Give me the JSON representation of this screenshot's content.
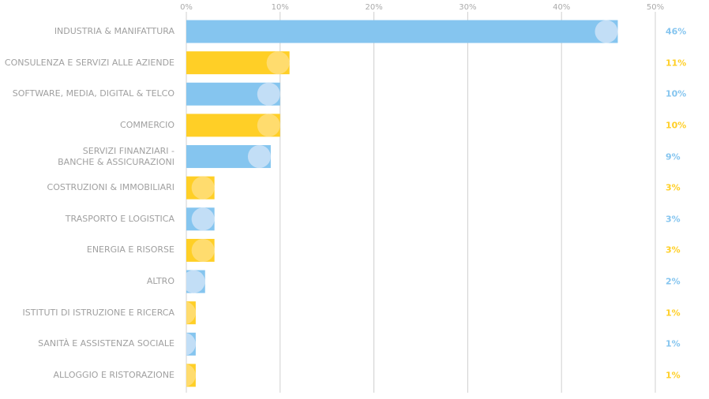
{
  "chart_data": {
    "type": "bar",
    "orientation": "horizontal",
    "categories": [
      "INDUSTRIA & MANIFATTURA",
      "CONSULENZA E SERVIZI ALLE AZIENDE",
      "SOFTWARE, MEDIA, DIGITAL & TELCO",
      "COMMERCIO",
      "SERVIZI FINANZIARI -\nBANCHE & ASSICURAZIONI",
      "COSTRUZIONI & IMMOBILIARI",
      "TRASPORTO E LOGISTICA",
      "ENERGIA E RISORSE",
      "ALTRO",
      "ISTITUTI DI ISTRUZIONE E RICERCA",
      "SANITÀ E ASSISTENZA SOCIALE",
      "ALLOGGIO E RISTORAZIONE"
    ],
    "values": [
      46,
      11,
      10,
      10,
      9,
      3,
      3,
      3,
      2,
      1,
      1,
      1
    ],
    "value_labels": [
      "46%",
      "11%",
      "10%",
      "10%",
      "9%",
      "3%",
      "3%",
      "3%",
      "2%",
      "1%",
      "1%",
      "1%"
    ],
    "colors": [
      "#85c5ef",
      "#ffcf26",
      "#85c5ef",
      "#ffcf26",
      "#85c5ef",
      "#ffcf26",
      "#85c5ef",
      "#ffcf26",
      "#85c5ef",
      "#ffcf26",
      "#85c5ef",
      "#ffcf26"
    ],
    "end_colors": [
      "#c2def6",
      "#ffdc6e",
      "#c2def6",
      "#ffdc6e",
      "#c2def6",
      "#ffdc6e",
      "#c2def6",
      "#ffdc6e",
      "#c2def6",
      "#ffdc6e",
      "#c2def6",
      "#ffdc6e"
    ],
    "xlim": [
      0,
      50
    ],
    "xticks": [
      {
        "value": 0,
        "label": "0%"
      },
      {
        "value": 10,
        "label": "10%"
      },
      {
        "value": 20,
        "label": "20%"
      },
      {
        "value": 30,
        "label": "30%"
      },
      {
        "value": 40,
        "label": "40%"
      },
      {
        "value": 50,
        "label": "50%"
      }
    ],
    "grid": true
  }
}
